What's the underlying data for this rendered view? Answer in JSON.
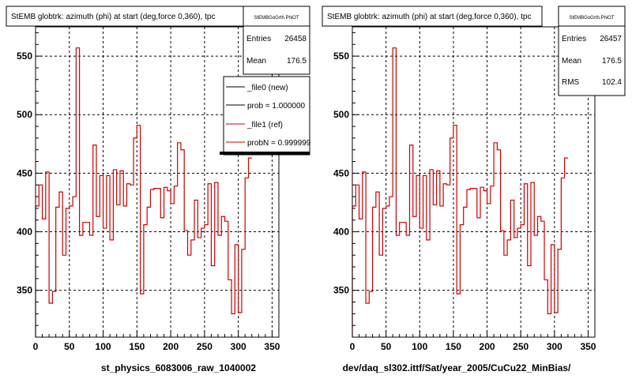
{
  "chart_data": [
    {
      "type": "line",
      "title": "StEMB globtrk: azimuth (phi) at start (deg,force 0,360), tpc",
      "xlabel": "st_physics_6083006_raw_1040002",
      "ylabel": "",
      "xlim": [
        0,
        360
      ],
      "ylim": [
        310,
        575
      ],
      "xticks": [
        0,
        50,
        100,
        150,
        200,
        250,
        300,
        350
      ],
      "yticks": [
        350,
        400,
        450,
        500,
        550
      ],
      "grid": true,
      "stats": {
        "name": "StEMBGoGrth.PhiOT",
        "rows": [
          {
            "label": "Entries",
            "value": "26458"
          },
          {
            "label": "Mean",
            "value": "176.5"
          }
        ]
      },
      "legend": {
        "placement": "top-right",
        "entries": [
          {
            "label": "_file0 (new)",
            "color": "#000000"
          },
          {
            "label": "prob = 1.000000",
            "color": "#000000"
          },
          {
            "label": "_file1 (ref)",
            "color": "#cc0000"
          },
          {
            "label": "probN = 0.999999",
            "color": "#cc0000"
          }
        ]
      },
      "series": [
        {
          "name": "_file1 (ref)",
          "color": "#cc0000",
          "bin_edges_start": 0,
          "bin_width": 5,
          "values": [
            422,
            440,
            411,
            451,
            339,
            349,
            421,
            434,
            380,
            420,
            422,
            430,
            557,
            397,
            408,
            408,
            397,
            474,
            413,
            448,
            403,
            448,
            393,
            453,
            423,
            452,
            422,
            441,
            440,
            480,
            491,
            347,
            406,
            421,
            436,
            437,
            437,
            412,
            438,
            435,
            424,
            439,
            476,
            470,
            401,
            380,
            393,
            427,
            395,
            403,
            406,
            441,
            371,
            442,
            397,
            413,
            409,
            359,
            330,
            389,
            331,
            385,
            446,
            463
          ]
        }
      ]
    },
    {
      "type": "line",
      "title": "StEMB globtrk: azimuth (phi) at start (deg,force 0,360), tpc",
      "xlabel": "dev/daq_sl302.ittf/Sat/year_2005/CuCu22_MinBias/",
      "ylabel": "",
      "xlim": [
        0,
        360
      ],
      "ylim": [
        310,
        575
      ],
      "xticks": [
        0,
        50,
        100,
        150,
        200,
        250,
        300,
        350
      ],
      "yticks": [
        350,
        400,
        450,
        500,
        550
      ],
      "grid": true,
      "stats": {
        "name": "StEMBGoGrth.PhiOT",
        "rows": [
          {
            "label": "Entries",
            "value": "26457"
          },
          {
            "label": "Mean",
            "value": "176.5"
          },
          {
            "label": "RMS",
            "value": "102.4"
          }
        ]
      },
      "series": [
        {
          "name": "",
          "color": "#cc0000",
          "bin_edges_start": 0,
          "bin_width": 5,
          "values": [
            422,
            440,
            411,
            451,
            339,
            349,
            421,
            434,
            380,
            420,
            422,
            430,
            557,
            397,
            408,
            408,
            397,
            474,
            413,
            448,
            403,
            448,
            393,
            453,
            423,
            452,
            422,
            441,
            440,
            480,
            491,
            347,
            406,
            421,
            436,
            437,
            437,
            412,
            438,
            435,
            424,
            439,
            476,
            470,
            401,
            380,
            393,
            427,
            395,
            403,
            406,
            441,
            371,
            442,
            397,
            413,
            409,
            359,
            330,
            389,
            331,
            385,
            446,
            463
          ]
        }
      ]
    }
  ]
}
